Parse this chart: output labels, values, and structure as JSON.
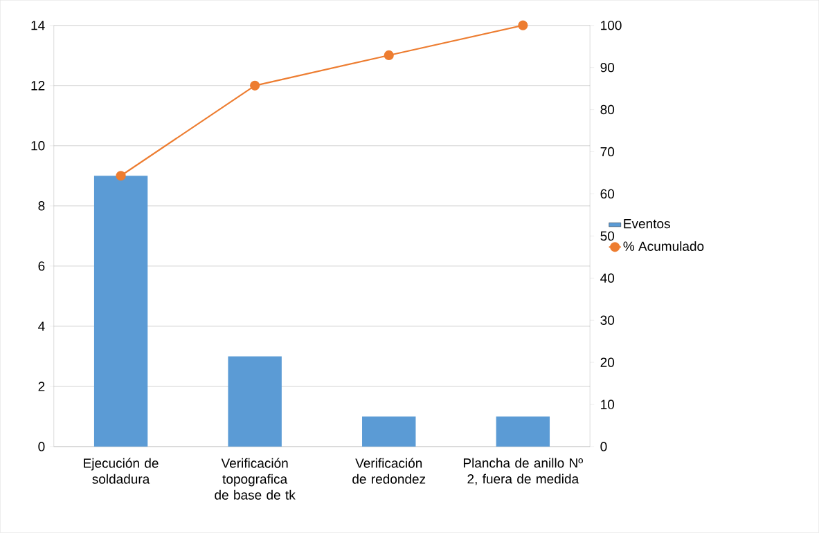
{
  "chart_data": {
    "type": "bar",
    "categories": [
      "Ejecución de soldadura",
      "Verificación topografica de base de tk",
      "Verificación de redondez",
      "Plancha de anillo Nº 2, fuera de medida"
    ],
    "series": [
      {
        "name": "Eventos",
        "color": "#5b9bd5",
        "values": [
          9,
          3,
          1,
          1
        ]
      },
      {
        "name": "% Acumulado",
        "type": "line",
        "axis": "y2",
        "color": "#ed7d31",
        "values": [
          64.3,
          85.7,
          92.9,
          100
        ]
      }
    ],
    "ylim": [
      0,
      14
    ],
    "yticks": [
      0,
      2,
      4,
      6,
      8,
      10,
      12,
      14
    ],
    "y2lim": [
      0,
      100
    ],
    "y2ticks": [
      0,
      10,
      20,
      30,
      40,
      50,
      60,
      70,
      80,
      90,
      100
    ],
    "grid": "y",
    "legend": "right",
    "marker": "circle",
    "line_style": "solid"
  }
}
